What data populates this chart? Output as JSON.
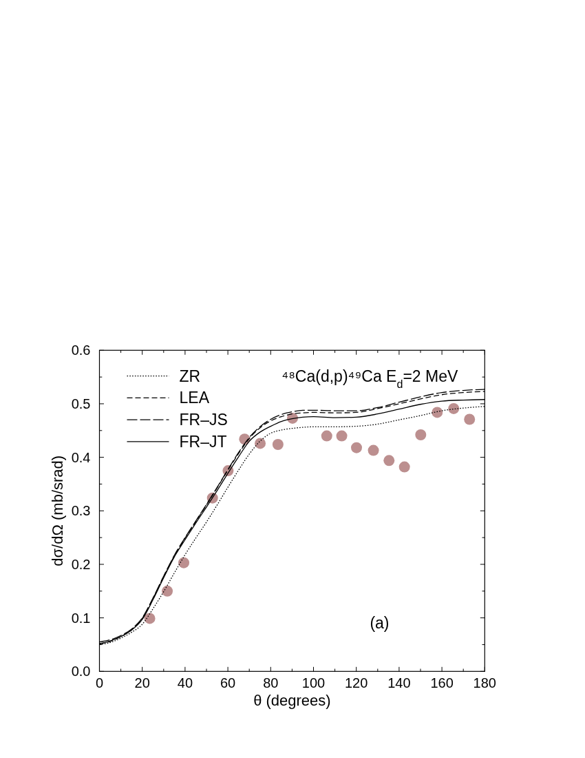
{
  "chart_data": {
    "type": "line",
    "title": "⁴⁸Ca(d,p)⁴⁹Ca E$_{d}$=2 MeV",
    "xlabel": "θ (degrees)",
    "ylabel": "dσ/dΩ (mb/srad)",
    "annotations": [
      "(a)"
    ],
    "xlim": [
      0,
      180
    ],
    "ylim": [
      0,
      0.6
    ],
    "xticks": [
      0,
      {
        "value": 10,
        "label": null
      },
      20,
      {
        "value": 30,
        "label": null
      },
      40,
      {
        "value": 50,
        "label": null
      },
      60,
      {
        "value": 70,
        "label": null
      },
      80,
      {
        "value": 90,
        "label": null
      },
      100,
      {
        "value": 110,
        "label": null
      },
      120,
      {
        "value": 130,
        "label": null
      },
      140,
      {
        "value": 150,
        "label": null
      },
      160,
      {
        "value": 170,
        "label": null
      },
      180
    ],
    "yticks": [
      {
        "value": 0,
        "label": "0.0"
      },
      {
        "value": 0.05,
        "label": null
      },
      {
        "value": 0.1,
        "label": "0.1"
      },
      {
        "value": 0.15,
        "label": null
      },
      {
        "value": 0.2,
        "label": "0.2"
      },
      {
        "value": 0.25,
        "label": null
      },
      {
        "value": 0.3,
        "label": "0.3"
      },
      {
        "value": 0.35,
        "label": null
      },
      {
        "value": 0.4,
        "label": "0.4"
      },
      {
        "value": 0.45,
        "label": null
      },
      {
        "value": 0.5,
        "label": "0.5"
      },
      {
        "value": 0.55,
        "label": null
      },
      {
        "value": 0.6,
        "label": "0.6"
      }
    ],
    "legend": "top left",
    "x": [
      0,
      5,
      10,
      15,
      20,
      25,
      30,
      35,
      40,
      45,
      50,
      55,
      60,
      65,
      70,
      75,
      80,
      85,
      90,
      95,
      100,
      110,
      120,
      130,
      140,
      150,
      160,
      170,
      180
    ],
    "series": [
      {
        "name": "ZR",
        "color": "#000000",
        "line_style": "dotted",
        "values": [
          0.05,
          0.054,
          0.062,
          0.073,
          0.088,
          0.117,
          0.149,
          0.184,
          0.218,
          0.249,
          0.279,
          0.311,
          0.344,
          0.376,
          0.406,
          0.43,
          0.445,
          0.451,
          0.454,
          0.456,
          0.457,
          0.457,
          0.458,
          0.462,
          0.47,
          0.478,
          0.487,
          0.492,
          0.495
        ]
      },
      {
        "name": "LEA",
        "color": "#000000",
        "line_style": "dashed",
        "values": [
          0.052,
          0.056,
          0.065,
          0.078,
          0.099,
          0.136,
          0.177,
          0.216,
          0.249,
          0.28,
          0.311,
          0.343,
          0.376,
          0.407,
          0.435,
          0.455,
          0.468,
          0.476,
          0.481,
          0.483,
          0.484,
          0.483,
          0.484,
          0.491,
          0.5,
          0.509,
          0.517,
          0.521,
          0.523
        ]
      },
      {
        "name": "FR–JS",
        "color": "#000000",
        "line_style": "dashed",
        "values": [
          0.055,
          0.059,
          0.067,
          0.079,
          0.1,
          0.137,
          0.178,
          0.217,
          0.25,
          0.281,
          0.312,
          0.344,
          0.377,
          0.409,
          0.437,
          0.457,
          0.471,
          0.48,
          0.485,
          0.488,
          0.488,
          0.487,
          0.487,
          0.493,
          0.503,
          0.513,
          0.521,
          0.525,
          0.527
        ]
      },
      {
        "name": "FR–JT",
        "color": "#000000",
        "line_style": "solid",
        "values": [
          0.051,
          0.057,
          0.065,
          0.077,
          0.097,
          0.134,
          0.175,
          0.214,
          0.246,
          0.277,
          0.307,
          0.338,
          0.37,
          0.401,
          0.43,
          0.447,
          0.458,
          0.467,
          0.472,
          0.475,
          0.476,
          0.474,
          0.475,
          0.481,
          0.49,
          0.499,
          0.505,
          0.507,
          0.508
        ]
      },
      {
        "type": "scatter",
        "color": "#bc8f8f",
        "marker": "circle",
        "x": [
          23.5,
          31.7,
          39.4,
          52.8,
          60.1,
          67.8,
          75.1,
          83.4,
          90.2,
          106.2,
          113.2,
          120.1,
          128.0,
          135.3,
          142.5,
          150.1,
          157.8,
          165.5,
          172.9
        ],
        "values": [
          0.099,
          0.15,
          0.203,
          0.324,
          0.375,
          0.434,
          0.426,
          0.424,
          0.473,
          0.44,
          0.44,
          0.418,
          0.413,
          0.394,
          0.382,
          0.442,
          0.484,
          0.491,
          0.471
        ]
      }
    ]
  }
}
